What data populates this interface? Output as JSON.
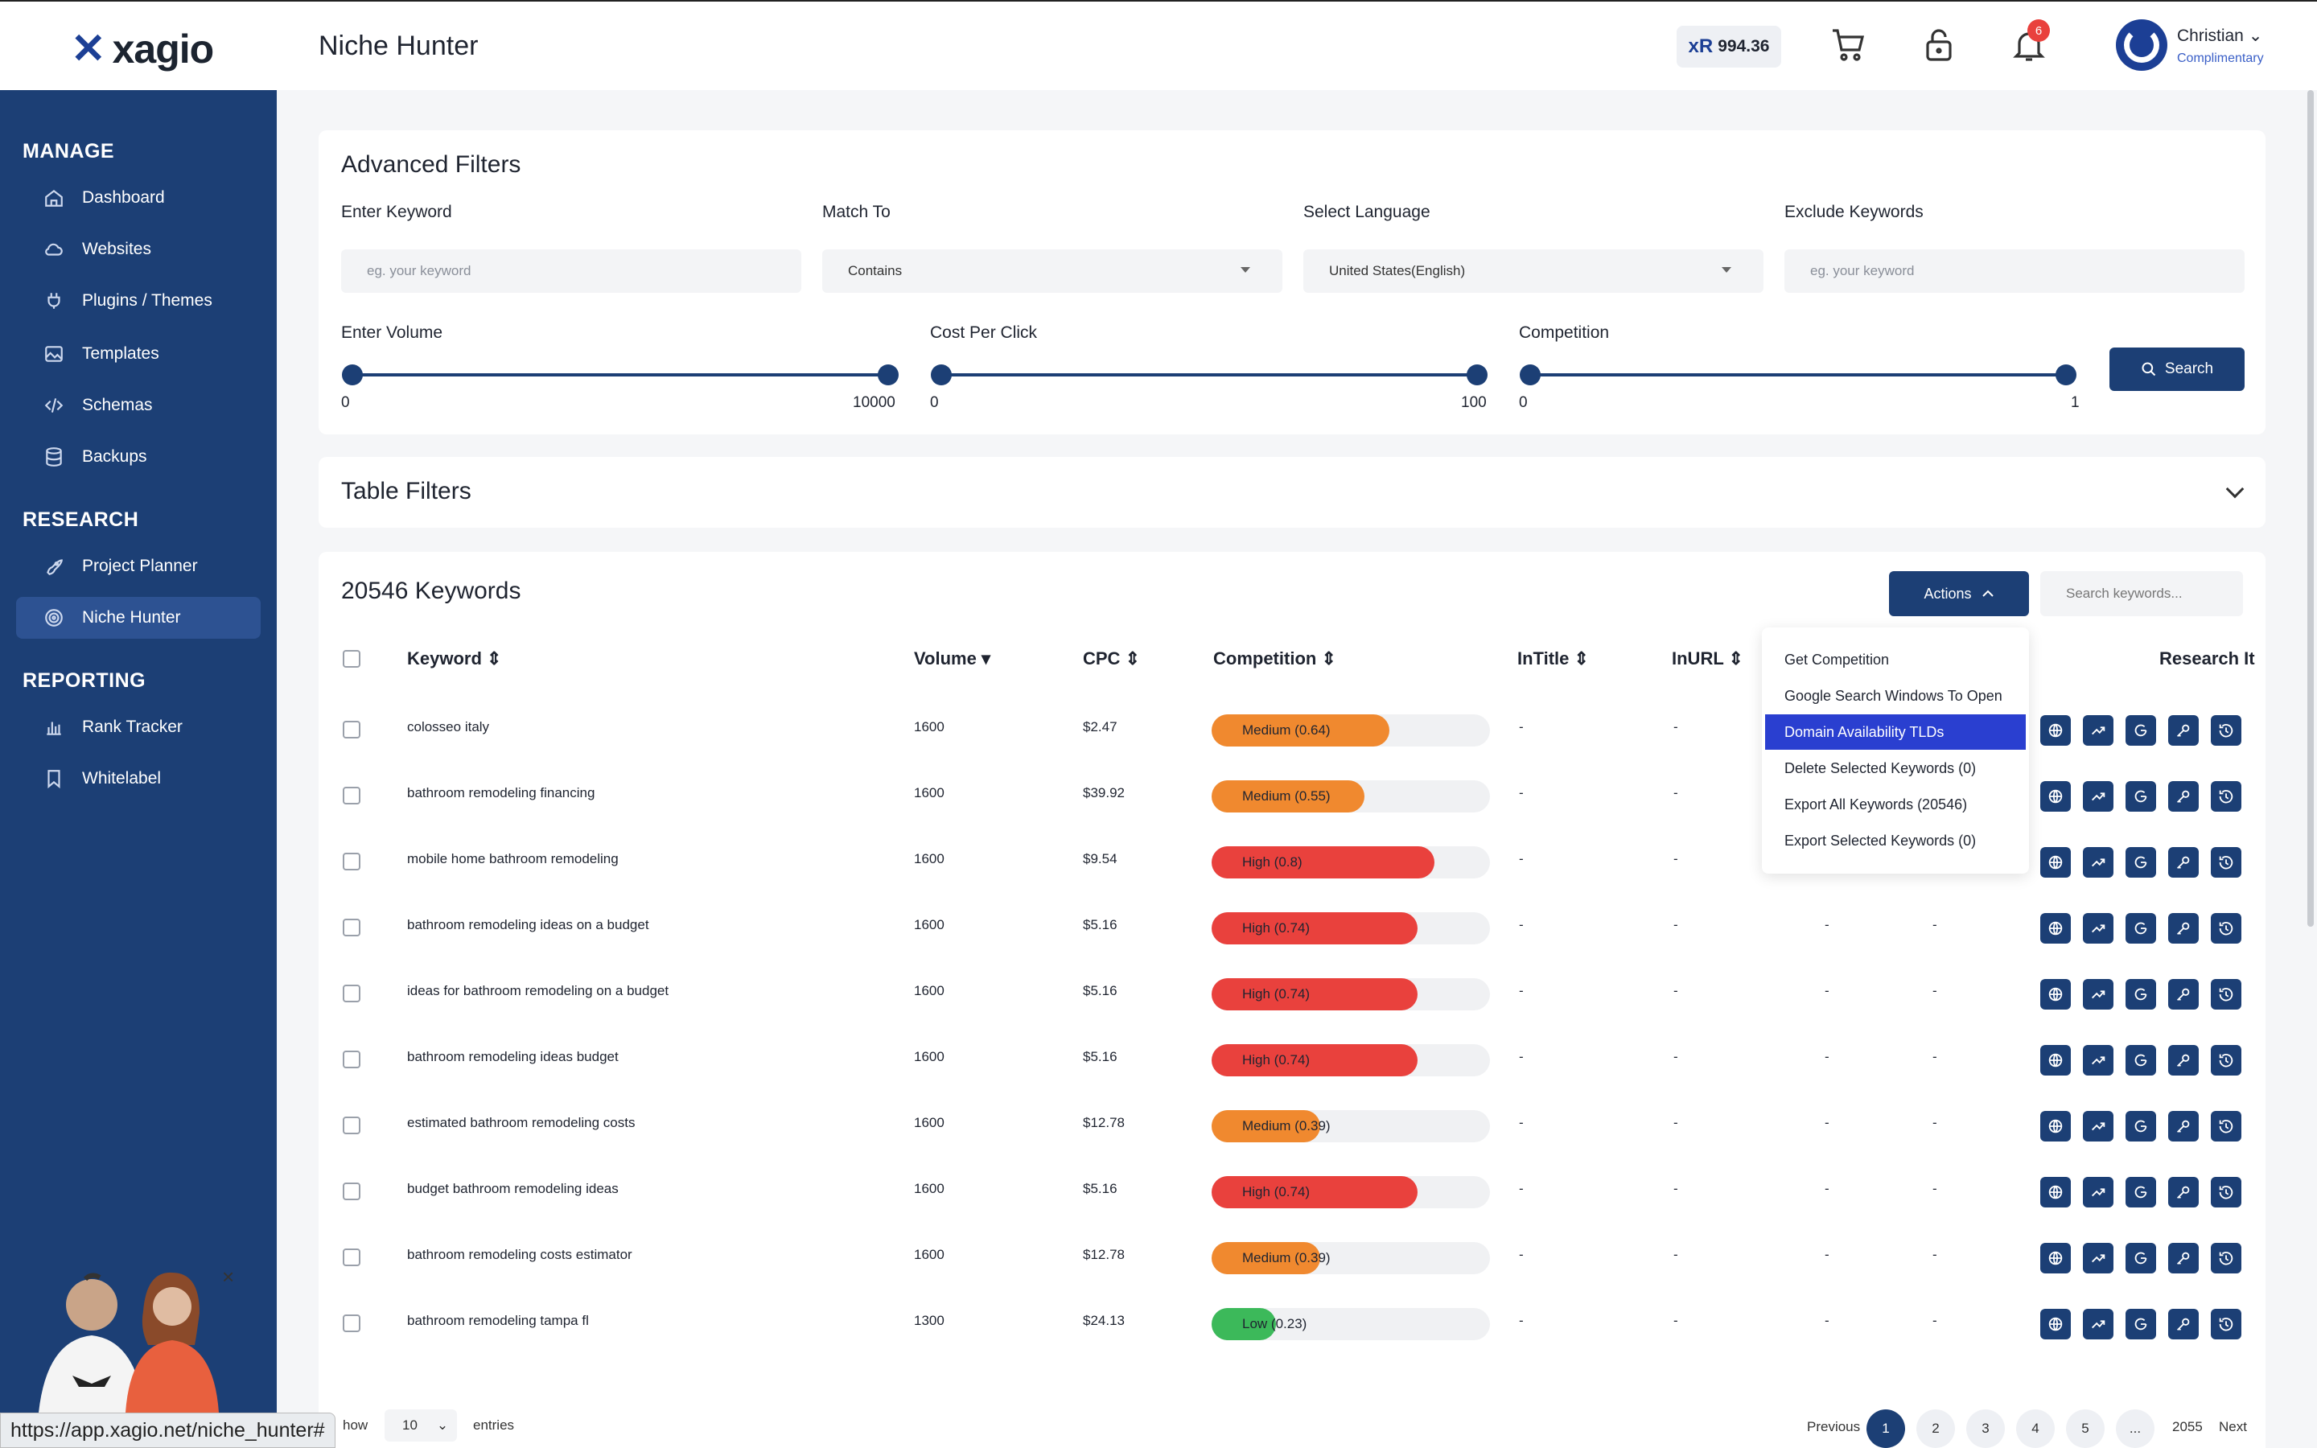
{
  "app": {
    "logo": "xagio",
    "page_title": "Niche Hunter"
  },
  "header": {
    "balance_prefix": "xR",
    "balance": "994.36",
    "notifications": "6",
    "user_name": "Christian",
    "user_plan": "Complimentary"
  },
  "sidebar": {
    "sections": [
      {
        "title": "MANAGE",
        "items": [
          "Dashboard",
          "Websites",
          "Plugins / Themes",
          "Templates",
          "Schemas",
          "Backups"
        ]
      },
      {
        "title": "RESEARCH",
        "items": [
          "Project Planner",
          "Niche Hunter"
        ]
      },
      {
        "title": "REPORTING",
        "items": [
          "Rank Tracker",
          "Whitelabel"
        ]
      }
    ],
    "active": "Niche Hunter"
  },
  "advanced_filters": {
    "title": "Advanced Filters",
    "keyword": {
      "label": "Enter Keyword",
      "placeholder": "eg. your keyword"
    },
    "match_to": {
      "label": "Match To",
      "value": "Contains"
    },
    "language": {
      "label": "Select Language",
      "value": "United States(English)"
    },
    "exclude": {
      "label": "Exclude Keywords",
      "placeholder": "eg. your keyword"
    },
    "volume": {
      "label": "Enter Volume",
      "min": "0",
      "max": "10000"
    },
    "cpc": {
      "label": "Cost Per Click",
      "min": "0",
      "max": "100"
    },
    "competition": {
      "label": "Competition",
      "min": "0",
      "max": "1"
    },
    "search_label": "Search"
  },
  "table_filters": {
    "title": "Table Filters"
  },
  "keywords": {
    "title": "20546 Keywords",
    "actions_label": "Actions",
    "search_placeholder": "Search keywords...",
    "columns": [
      "Keyword",
      "Volume",
      "CPC",
      "Competition",
      "InTitle",
      "InURL",
      "Research It"
    ],
    "rows": [
      {
        "keyword": "colosseo italy",
        "volume": "1600",
        "cpc": "$2.47",
        "comp": "Medium (0.64)",
        "level": 0.64,
        "color": "#f0892f",
        "intitle": "-",
        "inurl": "-",
        "c7": "",
        "c8": ""
      },
      {
        "keyword": "bathroom remodeling financing",
        "volume": "1600",
        "cpc": "$39.92",
        "comp": "Medium (0.55)",
        "level": 0.55,
        "color": "#f0892f",
        "intitle": "-",
        "inurl": "-",
        "c7": "",
        "c8": ""
      },
      {
        "keyword": "mobile home bathroom remodeling",
        "volume": "1600",
        "cpc": "$9.54",
        "comp": "High (0.8)",
        "level": 0.8,
        "color": "#e9413d",
        "intitle": "-",
        "inurl": "-",
        "c7": "-",
        "c8": "-"
      },
      {
        "keyword": "bathroom remodeling ideas on a budget",
        "volume": "1600",
        "cpc": "$5.16",
        "comp": "High (0.74)",
        "level": 0.74,
        "color": "#e9413d",
        "intitle": "-",
        "inurl": "-",
        "c7": "-",
        "c8": "-"
      },
      {
        "keyword": "ideas for bathroom remodeling on a budget",
        "volume": "1600",
        "cpc": "$5.16",
        "comp": "High (0.74)",
        "level": 0.74,
        "color": "#e9413d",
        "intitle": "-",
        "inurl": "-",
        "c7": "-",
        "c8": "-"
      },
      {
        "keyword": "bathroom remodeling ideas budget",
        "volume": "1600",
        "cpc": "$5.16",
        "comp": "High (0.74)",
        "level": 0.74,
        "color": "#e9413d",
        "intitle": "-",
        "inurl": "-",
        "c7": "-",
        "c8": "-"
      },
      {
        "keyword": "estimated bathroom remodeling costs",
        "volume": "1600",
        "cpc": "$12.78",
        "comp": "Medium (0.39)",
        "level": 0.39,
        "color": "#f0892f",
        "intitle": "-",
        "inurl": "-",
        "c7": "-",
        "c8": "-"
      },
      {
        "keyword": "budget bathroom remodeling ideas",
        "volume": "1600",
        "cpc": "$5.16",
        "comp": "High (0.74)",
        "level": 0.74,
        "color": "#e9413d",
        "intitle": "-",
        "inurl": "-",
        "c7": "-",
        "c8": "-"
      },
      {
        "keyword": "bathroom remodeling costs estimator",
        "volume": "1600",
        "cpc": "$12.78",
        "comp": "Medium (0.39)",
        "level": 0.39,
        "color": "#f0892f",
        "intitle": "-",
        "inurl": "-",
        "c7": "-",
        "c8": "-"
      },
      {
        "keyword": "bathroom remodeling tampa fl",
        "volume": "1300",
        "cpc": "$24.13",
        "comp": "Low (0.23)",
        "level": 0.23,
        "color": "#3cb95a",
        "intitle": "-",
        "inurl": "-",
        "c7": "-",
        "c8": "-"
      }
    ]
  },
  "actions_menu": {
    "items": [
      "Get Competition",
      "Google Search Windows To Open",
      "Domain Availability TLDs",
      "Delete Selected Keywords (0)",
      "Export All Keywords (20546)",
      "Export Selected Keywords (0)"
    ],
    "highlighted": "Domain Availability TLDs"
  },
  "footer": {
    "show_label": "how",
    "entries_value": "10",
    "entries_label": "entries",
    "previous": "Previous",
    "pages": [
      "1",
      "2",
      "3",
      "4",
      "5",
      "...",
      "2055"
    ],
    "next": "Next"
  },
  "statusbar": {
    "url": "https://app.xagio.net/niche_hunter#"
  },
  "colors": {
    "primary": "#1c3f75",
    "high": "#e9413d",
    "medium": "#f0892f",
    "low": "#3cb95a",
    "highlight": "#2a3fd0"
  }
}
